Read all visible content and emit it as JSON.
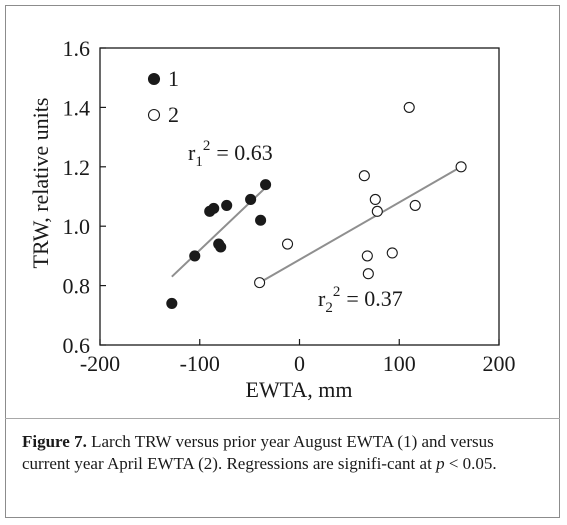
{
  "chart_data": {
    "type": "scatter",
    "xlabel": "EWTA, mm",
    "ylabel": "TRW, relative units",
    "xlim": [
      -200,
      200
    ],
    "ylim": [
      0.6,
      1.6
    ],
    "xticks": [
      -200,
      -100,
      0,
      100,
      200
    ],
    "xtick_labels": [
      "-200",
      "-100",
      "0",
      "100",
      "200"
    ],
    "yticks": [
      0.6,
      0.8,
      1.0,
      1.2,
      1.4,
      1.6
    ],
    "ytick_labels": [
      "0.6",
      "0.8",
      "1.0",
      "1.2",
      "1.4",
      "1.6"
    ],
    "grid": false,
    "legend_position": "top-left",
    "series": [
      {
        "name": "1",
        "marker": "filled-circle",
        "color": "#1a1a1a",
        "points": [
          [
            -128,
            0.74
          ],
          [
            -105,
            0.9
          ],
          [
            -90,
            1.05
          ],
          [
            -86,
            1.06
          ],
          [
            -81,
            0.94
          ],
          [
            -79,
            0.93
          ],
          [
            -73,
            1.07
          ],
          [
            -49,
            1.09
          ],
          [
            -39,
            1.02
          ],
          [
            -34,
            1.14
          ]
        ],
        "fit": {
          "x": [
            -128,
            -34
          ],
          "y": [
            0.83,
            1.13
          ]
        },
        "r2_label": "r",
        "r2_sub": "1",
        "r2_sup": "2",
        "r2_value": "= 0.63"
      },
      {
        "name": "2",
        "marker": "open-circle",
        "color": "#1a1a1a",
        "points": [
          [
            -40,
            0.81
          ],
          [
            -12,
            0.94
          ],
          [
            65,
            1.17
          ],
          [
            68,
            0.9
          ],
          [
            69,
            0.84
          ],
          [
            76,
            1.09
          ],
          [
            78,
            1.05
          ],
          [
            93,
            0.91
          ],
          [
            110,
            1.4
          ],
          [
            116,
            1.07
          ],
          [
            162,
            1.2
          ]
        ],
        "fit": {
          "x": [
            -40,
            162
          ],
          "y": [
            0.81,
            1.2
          ]
        },
        "r2_label": "r",
        "r2_sub": "2",
        "r2_sup": "2",
        "r2_value": "= 0.37"
      }
    ],
    "fit_line_color": "#8f8f8f"
  },
  "caption": {
    "figure_label": "Figure 7.",
    "text_before_p": " Larch TRW versus prior year August EWTA (1) and versus current year April EWTA (2). Regressions are signifi-cant at ",
    "p_symbol": "p",
    "text_after_p": " < 0.05."
  }
}
